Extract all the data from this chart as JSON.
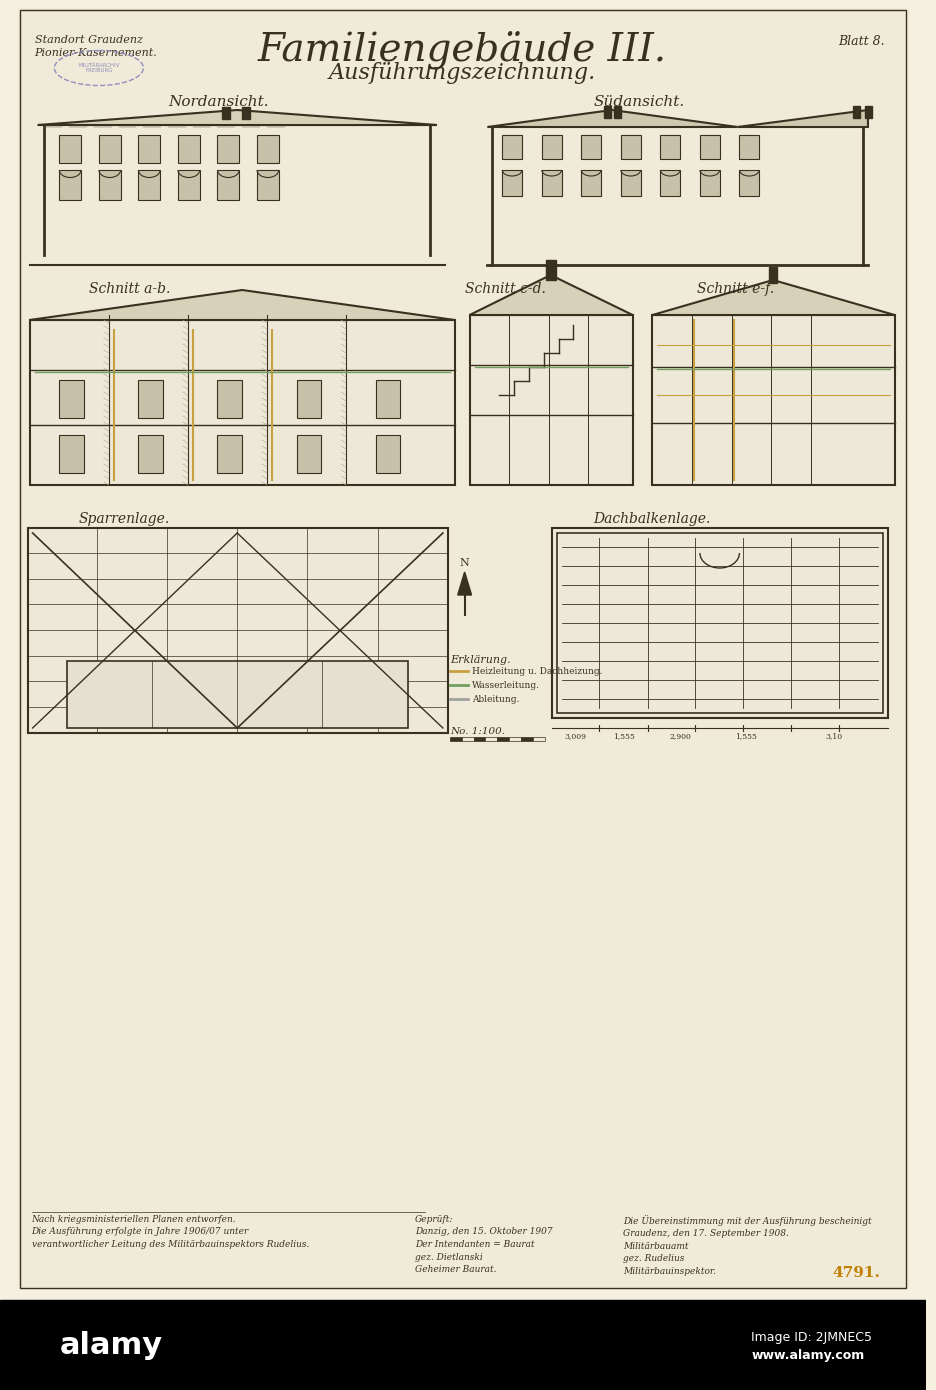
{
  "bg_color": "#f5f0e0",
  "paper_color": "#f0ead8",
  "title_main": "Familiengebäude III.",
  "title_sub": "Ausführungszeichnung.",
  "top_left_line1": "Standort Graudenz",
  "top_left_line2": "Pionier-Kasernement.",
  "top_right": "Blatt 8.",
  "label_nord": "Nordansicht.",
  "label_sued": "Südansicht.",
  "label_schnitt_ab": "Schnitt a-b.",
  "label_schnitt_cd": "Schnitt c-d.",
  "label_schnitt_ef": "Schnitt e-f.",
  "label_sparren": "Sparrenlage.",
  "label_dachbalken": "Dachbalkenlage.",
  "bottom_number": "4791.",
  "alamy_bar_color": "#000000",
  "alamy_text_color": "#ffffff",
  "line_color": "#3a3020",
  "detail_line_color": "#5a5040",
  "accent_yellow": "#c8a040",
  "accent_green": "#70a060",
  "scale_text": "No. 1:100.",
  "stamp_color": "#9090c0"
}
